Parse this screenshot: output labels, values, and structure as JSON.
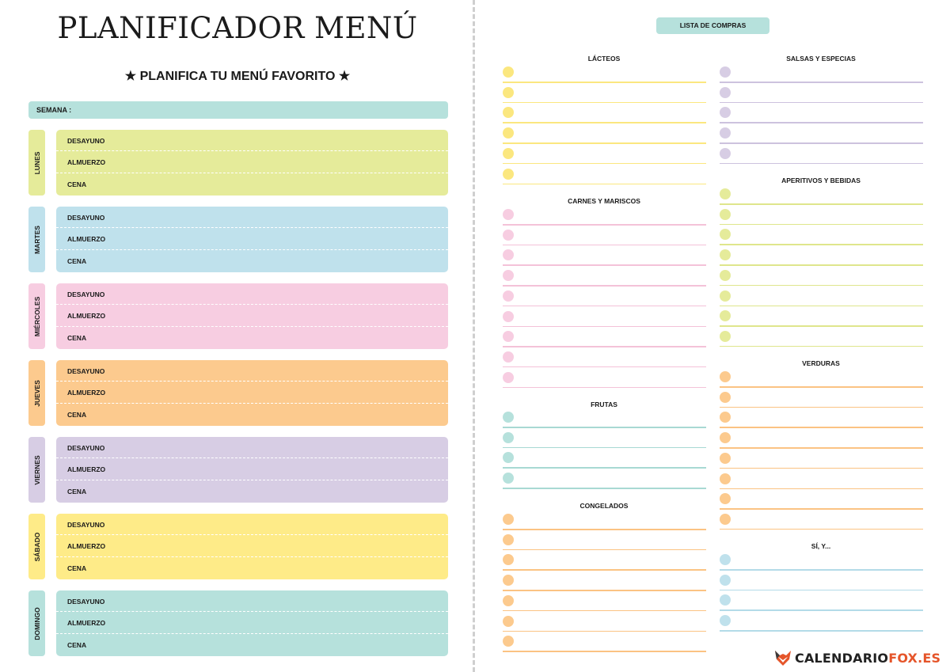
{
  "title": "PLANIFICADOR MENÚ",
  "subtitle": "★ PLANIFICA TU MENÚ FAVORITO ★",
  "week_label": "SEMANA :",
  "meals": [
    "DESAYUNO",
    "ALMUERZO",
    "CENA"
  ],
  "days": [
    {
      "name": "LUNES",
      "color": "#e5eb9a"
    },
    {
      "name": "MARTES",
      "color": "#bfe1ec"
    },
    {
      "name": "MIÉRCOLES",
      "color": "#f7cde1"
    },
    {
      "name": "JUEVES",
      "color": "#fcca8e"
    },
    {
      "name": "VIERNES",
      "color": "#d7cde4"
    },
    {
      "name": "SÁBADO",
      "color": "#feeb88"
    },
    {
      "name": "DOMINGO",
      "color": "#b6e1dc"
    }
  ],
  "shopping_title": "LISTA DE COMPRAS",
  "categories": [
    {
      "name": "LÁCTEOS",
      "rows": 6,
      "dot": "#fbe77f",
      "line": "#fbe77f"
    },
    {
      "name": "CARNES Y MARISCOS",
      "rows": 9,
      "dot": "#f7cde1",
      "line": "#f4c2d8"
    },
    {
      "name": "FRUTAS",
      "rows": 4,
      "dot": "#b6e1dc",
      "line": "#a8d9d3"
    },
    {
      "name": "CONGELADOS",
      "rows": 7,
      "dot": "#fcca8e",
      "line": "#fbc383"
    },
    {
      "name": "SALSAS Y ESPECIAS",
      "rows": 5,
      "dot": "#d7cde4",
      "line": "#cdc2de"
    },
    {
      "name": "APERITIVOS Y BEBIDAS",
      "rows": 8,
      "dot": "#e5eb9a",
      "line": "#dfe68c"
    },
    {
      "name": "VERDURAS",
      "rows": 8,
      "dot": "#fcca8e",
      "line": "#fbc383"
    },
    {
      "name": "SÍ, Y...",
      "rows": 4,
      "dot": "#bfe1ec",
      "line": "#b3dbe8"
    }
  ],
  "brand": {
    "part1": "CALENDARIO",
    "part2": "FOX.ES",
    "accent": "#e5552a"
  }
}
